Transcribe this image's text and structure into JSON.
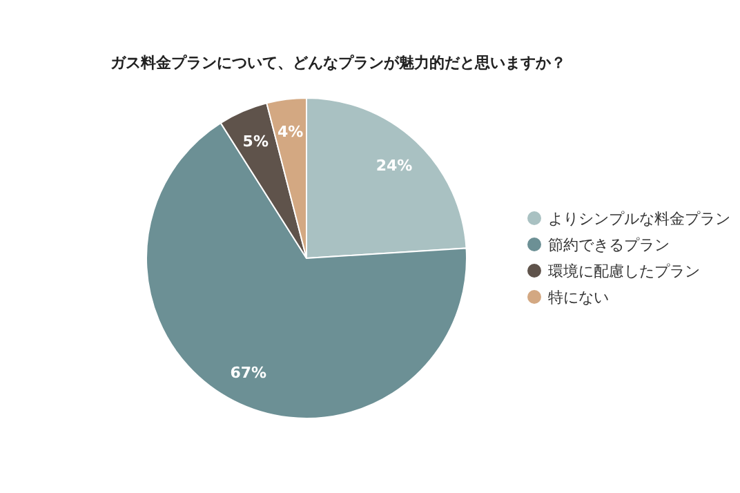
{
  "chart_data": {
    "type": "pie",
    "title": "ガス料金プランについて、どんなプランが魅力的だと思いますか？",
    "categories": [
      "よりシンプルな料金プラン",
      "節約できるプラン",
      "環境に配慮したプラン",
      "特にない"
    ],
    "values": [
      24,
      67,
      5,
      4
    ],
    "value_labels": [
      "24%",
      "67%",
      "5%",
      "4%"
    ],
    "colors": [
      "#a9c1c2",
      "#6c9095",
      "#5f534b",
      "#d3a882"
    ],
    "legend": "right"
  }
}
